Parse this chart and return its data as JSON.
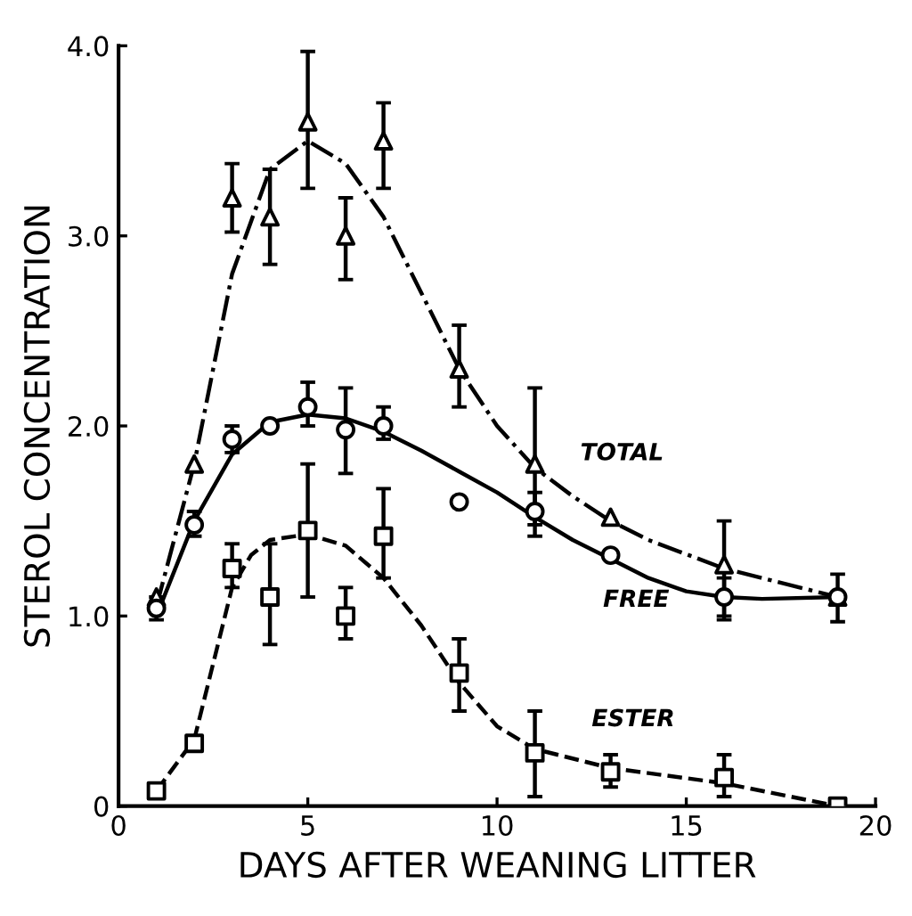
{
  "chart_data": {
    "type": "scatter",
    "xlabel": "DAYS AFTER WEANING LITTER",
    "ylabel": "STEROL CONCENTRATION",
    "xlim": [
      0,
      20
    ],
    "ylim": [
      0,
      4.0
    ],
    "xticks": [
      0,
      5,
      10,
      15,
      20
    ],
    "yticks": [
      {
        "value": 0,
        "label": "0"
      },
      {
        "value": 1,
        "label": "1.0"
      },
      {
        "value": 2,
        "label": "2.0"
      },
      {
        "value": 3,
        "label": "3.0"
      },
      {
        "value": 4,
        "label": "4.0"
      }
    ],
    "series": [
      {
        "color": "#000000",
        "marker": "triangle",
        "x": [
          1,
          2,
          3,
          4,
          5,
          6,
          7,
          9,
          11,
          13,
          16,
          19
        ],
        "values": [
          1.1,
          1.8,
          3.2,
          3.1,
          3.6,
          3.0,
          3.5,
          2.3,
          1.8,
          1.52,
          1.27,
          1.1
        ],
        "errors": [
          null,
          null,
          [
            3.02,
            3.38
          ],
          [
            2.85,
            3.35
          ],
          [
            3.25,
            3.97
          ],
          [
            2.77,
            3.2
          ],
          [
            3.25,
            3.7
          ],
          [
            2.1,
            2.53
          ],
          [
            1.48,
            2.2
          ],
          null,
          [
            1.0,
            1.5
          ],
          null
        ]
      },
      {
        "color": "#000000",
        "marker": "circle",
        "x": [
          1,
          2,
          3,
          4,
          5,
          6,
          7,
          9,
          11,
          13,
          16,
          19
        ],
        "values": [
          1.04,
          1.48,
          1.93,
          2.0,
          2.1,
          1.98,
          2.0,
          1.6,
          1.55,
          1.32,
          1.1,
          1.1
        ],
        "errors": [
          [
            0.98,
            1.1
          ],
          [
            1.42,
            1.55
          ],
          [
            1.86,
            2.0
          ],
          null,
          [
            2.0,
            2.23
          ],
          [
            1.75,
            2.2
          ],
          [
            1.93,
            2.1
          ],
          null,
          [
            1.42,
            1.65
          ],
          null,
          [
            0.98,
            1.2
          ],
          [
            0.97,
            1.22
          ]
        ]
      },
      {
        "color": "#000000",
        "marker": "square",
        "x": [
          1,
          2,
          3,
          4,
          5,
          6,
          7,
          9,
          11,
          13,
          16,
          19
        ],
        "values": [
          0.08,
          0.33,
          1.25,
          1.1,
          1.45,
          1.0,
          1.42,
          0.7,
          0.28,
          0.18,
          0.15,
          0.0
        ],
        "errors": [
          null,
          null,
          [
            1.15,
            1.38
          ],
          [
            0.85,
            1.38
          ],
          [
            1.1,
            1.8
          ],
          [
            0.88,
            1.15
          ],
          [
            1.2,
            1.67
          ],
          [
            0.5,
            0.88
          ],
          [
            0.05,
            0.5
          ],
          [
            0.1,
            0.27
          ],
          [
            0.05,
            0.27
          ],
          null
        ]
      },
      {
        "type": "line",
        "color": "#000000",
        "line_style": "dashdot",
        "x": [
          1,
          2,
          3,
          4,
          5,
          6,
          7,
          8,
          9,
          10,
          11,
          12,
          13,
          14,
          16,
          19
        ],
        "values": [
          1.05,
          1.8,
          2.8,
          3.35,
          3.5,
          3.38,
          3.1,
          2.7,
          2.3,
          2.0,
          1.78,
          1.63,
          1.5,
          1.4,
          1.25,
          1.1
        ]
      },
      {
        "type": "line",
        "color": "#000000",
        "line_style": "solid",
        "x": [
          1,
          2,
          3,
          4,
          5,
          6,
          7,
          8,
          9,
          10,
          11,
          12,
          13,
          14,
          15,
          16,
          17,
          19
        ],
        "values": [
          1.0,
          1.5,
          1.85,
          2.02,
          2.06,
          2.04,
          1.97,
          1.87,
          1.76,
          1.65,
          1.52,
          1.4,
          1.3,
          1.2,
          1.13,
          1.1,
          1.09,
          1.1
        ]
      },
      {
        "type": "line",
        "color": "#000000",
        "line_style": "dashed",
        "x": [
          1,
          2,
          2.5,
          3,
          3.5,
          4,
          5,
          6,
          7,
          8,
          9,
          10,
          11,
          13,
          16,
          19
        ],
        "values": [
          0.08,
          0.35,
          0.75,
          1.15,
          1.32,
          1.4,
          1.43,
          1.37,
          1.2,
          0.95,
          0.65,
          0.42,
          0.3,
          0.2,
          0.12,
          0.0
        ]
      }
    ],
    "annotations": [
      "TOTAL",
      "FREE",
      "ESTER"
    ]
  }
}
